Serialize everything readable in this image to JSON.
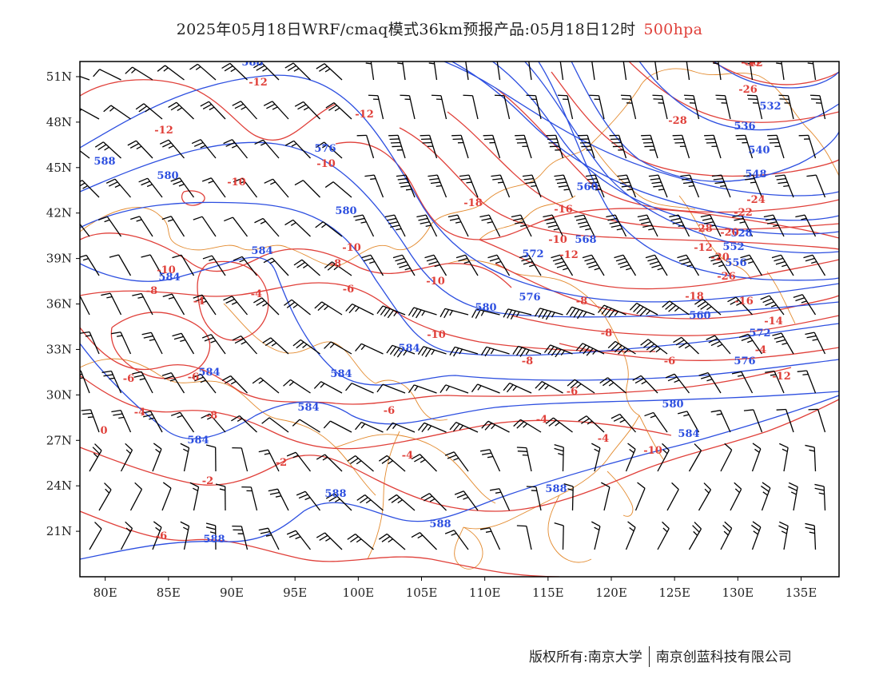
{
  "title": {
    "main": "2025年05月18日WRF/cmaq模式36km预报产品:05月18日12时",
    "level": "500hpa"
  },
  "axes": {
    "lat_labels": [
      "51N",
      "48N",
      "45N",
      "42N",
      "39N",
      "36N",
      "33N",
      "30N",
      "27N",
      "24N",
      "21N"
    ],
    "lat_values": [
      51,
      48,
      45,
      42,
      39,
      36,
      33,
      30,
      27,
      24,
      21
    ],
    "lon_labels": [
      "80E",
      "85E",
      "90E",
      "95E",
      "100E",
      "105E",
      "110E",
      "115E",
      "120E",
      "125E",
      "130E",
      "135E"
    ],
    "lon_values": [
      80,
      85,
      90,
      95,
      100,
      105,
      110,
      115,
      120,
      125,
      130,
      135
    ]
  },
  "map_extent": {
    "lon": [
      78,
      138
    ],
    "lat": [
      18,
      52
    ]
  },
  "colors": {
    "height_contour": "#2d4fe0",
    "temperature_contour": "#e0403a",
    "coastline_border": "#e38a2e",
    "wind_barb": "#000000"
  },
  "height_contour_labels": [
    "588",
    "576",
    "580",
    "580",
    "584",
    "584",
    "584",
    "584",
    "584",
    "584",
    "584",
    "580",
    "576",
    "572",
    "568",
    "560",
    "548",
    "540",
    "536",
    "532",
    "528",
    "552",
    "556",
    "560",
    "572",
    "576",
    "580",
    "584",
    "588",
    "588",
    "588",
    "588",
    "588"
  ],
  "temperature_contour_labels": [
    "-12",
    "-12",
    "-12",
    "-10",
    "-10",
    "-10",
    "-8",
    "-8",
    "-6",
    "-10",
    "-10",
    "-10",
    "-8",
    "-6",
    "-4",
    "-4",
    "-4",
    "-2",
    "-4",
    "-6",
    "-6",
    "-8",
    "-4",
    "0",
    "-2",
    "-4",
    "-6",
    "-6",
    "-8",
    "-10",
    "-12",
    "-16",
    "-18",
    "-20",
    "-12",
    "-20",
    "-22",
    "-24",
    "-26",
    "-28",
    "-30",
    "-28",
    "-26",
    "-18",
    "-16",
    "-14",
    "-12",
    "-10",
    "-8",
    "-6",
    "-4",
    "-12"
  ],
  "credit": {
    "left": "版权所有:南京大学",
    "right": "南京创蓝科技有限公司"
  }
}
